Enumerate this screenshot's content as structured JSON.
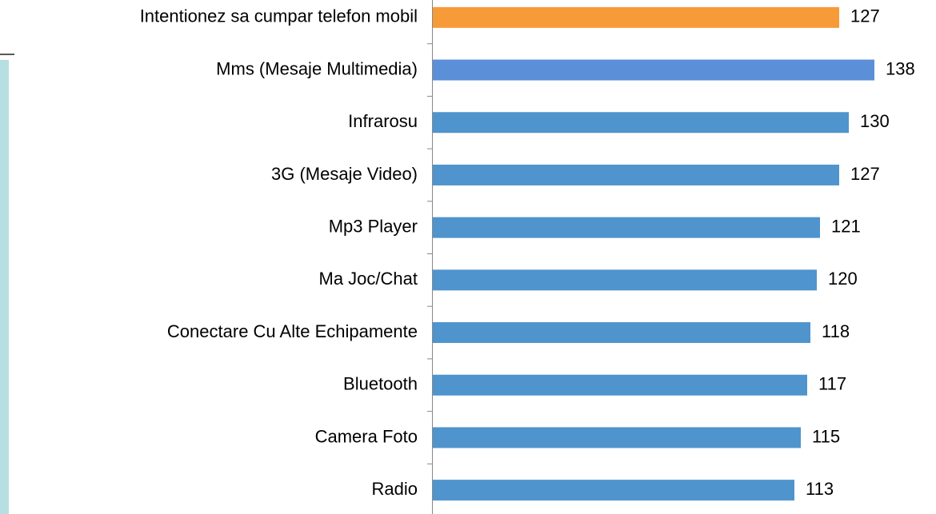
{
  "chart_data": {
    "type": "bar",
    "orientation": "horizontal",
    "categories": [
      "Intentionez sa cumpar telefon mobil",
      "Mms (Mesaje Multimedia)",
      "Infrarosu",
      "3G (Mesaje Video)",
      "Mp3 Player",
      "Ma Joc/Chat",
      "Conectare Cu Alte Echipamente",
      "Bluetooth",
      "Camera Foto",
      "Radio"
    ],
    "values": [
      127,
      138,
      130,
      127,
      121,
      120,
      118,
      117,
      115,
      113
    ],
    "colors": [
      "#f79a38",
      "#5b8fd8",
      "#4f94cd",
      "#4f94cd",
      "#4f94cd",
      "#4f94cd",
      "#4f94cd",
      "#4f94cd",
      "#4f94cd",
      "#4f94cd"
    ]
  }
}
